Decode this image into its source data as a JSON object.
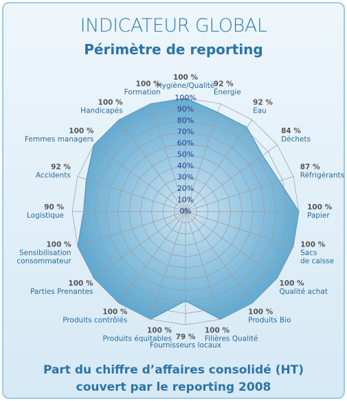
{
  "chart_data": {
    "type": "radar",
    "title": "INDICATEUR GLOBAL",
    "subtitle": "Périmètre de reporting",
    "footer": [
      "Part du chiffre d’affaires consolidé (HT)",
      "couvert par le reporting 2008"
    ],
    "categories": [
      "Hygiène/Qualité",
      "Énergie",
      "Eau",
      "Déchets",
      "Réfrigérants",
      "Papier",
      "Sacs\nde caisse",
      "Qualité achat",
      "Produits Bio",
      "Filières Qualité",
      "Fournisseurs locaux",
      "Produits équitables",
      "Produits contrôlés",
      "Parties Prenantes",
      "Sensibilisation\nconsommateur",
      "Logistique",
      "Accidents",
      "Femmes managers",
      "Handicapés",
      "Formation"
    ],
    "values": [
      100,
      92,
      92,
      84,
      87,
      100,
      100,
      100,
      100,
      100,
      79,
      100,
      100,
      100,
      100,
      90,
      92,
      100,
      100,
      100
    ],
    "value_labels": [
      "100 %",
      "92 %",
      "92 %",
      "84 %",
      "87 %",
      "100 %",
      "100 %",
      "100 %",
      "100 %",
      "100 %",
      "79 %",
      "100 %",
      "100 %",
      "100 %",
      "100 %",
      "90 %",
      "92 %",
      "100 %",
      "100 %",
      "100 %"
    ],
    "color": "#4f9fcb",
    "rlim": [
      0,
      100
    ],
    "rticks": [
      {
        "value": 0,
        "label": "0%"
      },
      {
        "value": 10,
        "label": "10%"
      },
      {
        "value": 20,
        "label": "20%"
      },
      {
        "value": 30,
        "label": "30%"
      },
      {
        "value": 40,
        "label": "40%"
      },
      {
        "value": 50,
        "label": "50%"
      },
      {
        "value": 60,
        "label": "60%"
      },
      {
        "value": 70,
        "label": "70%"
      },
      {
        "value": 80,
        "label": "80%"
      },
      {
        "value": 90,
        "label": "90%"
      },
      {
        "value": 100,
        "label": "100%"
      }
    ],
    "grid": true
  }
}
